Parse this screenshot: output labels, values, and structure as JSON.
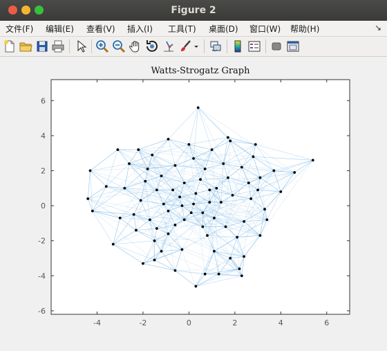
{
  "window": {
    "title": "Figure 2"
  },
  "menu": [
    {
      "label": "文件(F)"
    },
    {
      "label": "编辑(E)"
    },
    {
      "label": "查看(V)"
    },
    {
      "label": "插入(I)"
    },
    {
      "label": "工具(T)"
    },
    {
      "label": "桌面(D)"
    },
    {
      "label": "窗口(W)"
    },
    {
      "label": "帮助(H)"
    }
  ],
  "toolbar_icons": [
    "new-file-icon",
    "open-folder-icon",
    "save-icon",
    "print-icon",
    "pointer-icon",
    "zoom-in-icon",
    "zoom-out-icon",
    "pan-hand-icon",
    "rotate-3d-icon",
    "data-cursor-icon",
    "brush-icon",
    "dropdown-arrow-icon",
    "link-icon",
    "colorbar-icon",
    "legend-icon",
    "hide-tools-icon",
    "dock-icon"
  ],
  "chart_data": {
    "type": "scatter",
    "title": "Watts-Strogatz Graph",
    "xlim": [
      -6,
      7
    ],
    "ylim": [
      -6.2,
      7.2
    ],
    "xticks": [
      "-4",
      "-2",
      "0",
      "2",
      "4",
      "6"
    ],
    "yticks": [
      "-6",
      "-4",
      "-2",
      "0",
      "2",
      "4",
      "6"
    ],
    "node_color": "#000000",
    "edge_color": "#7fb8e6",
    "grid": false,
    "nodes": [
      [
        0.4,
        5.6
      ],
      [
        5.4,
        2.6
      ],
      [
        -4.3,
        2.0
      ],
      [
        -4.4,
        0.4
      ],
      [
        -4.2,
        -0.3
      ],
      [
        4.6,
        1.9
      ],
      [
        4.0,
        0.8
      ],
      [
        0.3,
        -4.6
      ],
      [
        0.7,
        -3.9
      ],
      [
        1.3,
        -3.9
      ],
      [
        2.3,
        -4.0
      ],
      [
        2.2,
        -3.6
      ],
      [
        -2.2,
        3.2
      ],
      [
        -3.1,
        3.2
      ],
      [
        1.7,
        3.9
      ],
      [
        1.8,
        3.7
      ],
      [
        2.9,
        3.5
      ],
      [
        3.7,
        2.0
      ],
      [
        3.1,
        -1.7
      ],
      [
        3.4,
        -0.8
      ],
      [
        -3.3,
        -2.2
      ],
      [
        -2.0,
        -3.3
      ],
      [
        -1.5,
        -3.1
      ],
      [
        -0.6,
        -3.7
      ],
      [
        1.8,
        -3.0
      ],
      [
        2.4,
        -2.9
      ],
      [
        3.1,
        1.6
      ],
      [
        2.3,
        2.2
      ],
      [
        -1.8,
        2.1
      ],
      [
        -1.2,
        1.7
      ],
      [
        -0.6,
        2.3
      ],
      [
        0.7,
        2.1
      ],
      [
        1.5,
        2.4
      ],
      [
        -2.8,
        1.0
      ],
      [
        -3.0,
        -0.7
      ],
      [
        -2.3,
        -1.4
      ],
      [
        -1.5,
        -2.0
      ],
      [
        -0.9,
        -1.6
      ],
      [
        0.8,
        -1.7
      ],
      [
        1.6,
        -1.2
      ],
      [
        2.4,
        -0.9
      ],
      [
        2.7,
        0.4
      ],
      [
        1.2,
        1.0
      ],
      [
        0.3,
        0.7
      ],
      [
        -0.4,
        0.5
      ],
      [
        -0.9,
        -0.3
      ],
      [
        -0.2,
        -0.8
      ],
      [
        0.6,
        -0.4
      ],
      [
        1.1,
        -0.7
      ],
      [
        -1.4,
        0.9
      ],
      [
        -0.2,
        1.3
      ],
      [
        0.9,
        0.2
      ],
      [
        -0.6,
        -1.1
      ],
      [
        0.2,
        0.1
      ],
      [
        -1.1,
        0.1
      ],
      [
        0.5,
        1.5
      ],
      [
        1.9,
        0.6
      ],
      [
        -2.1,
        0.3
      ],
      [
        -1.7,
        -0.8
      ],
      [
        2.1,
        -1.8
      ],
      [
        -2.6,
        2.4
      ],
      [
        0.0,
        3.5
      ],
      [
        -0.9,
        3.8
      ],
      [
        2.8,
        2.8
      ],
      [
        3.3,
        -0.2
      ],
      [
        -3.6,
        1.1
      ],
      [
        -0.3,
        -2.5
      ],
      [
        1.1,
        -2.6
      ],
      [
        -1.2,
        -2.6
      ],
      [
        2.6,
        1.3
      ],
      [
        -0.7,
        0.9
      ],
      [
        0.1,
        -0.4
      ],
      [
        0.9,
        0.9
      ],
      [
        -0.3,
        0.0
      ],
      [
        1.4,
        0.2
      ],
      [
        -1.9,
        1.4
      ],
      [
        0.6,
        -1.2
      ],
      [
        -1.4,
        -1.3
      ],
      [
        1.7,
        1.6
      ],
      [
        -2.4,
        -0.5
      ],
      [
        0.2,
        2.7
      ],
      [
        1.0,
        3.2
      ],
      [
        -1.6,
        2.9
      ],
      [
        3.0,
        0.9
      ]
    ]
  }
}
